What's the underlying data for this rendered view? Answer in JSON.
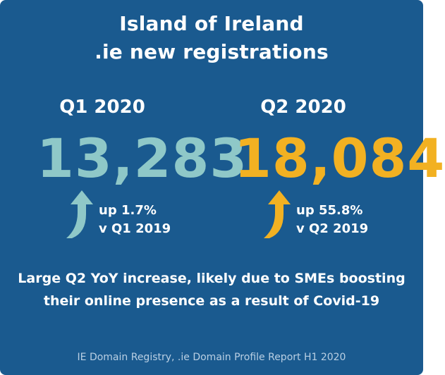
{
  "title": {
    "line1": "Island of Ireland",
    "line2": ".ie new registrations"
  },
  "periods": [
    {
      "label": "Q1 2020",
      "value": "13,283",
      "change": "up 1.7%",
      "comparison": "v Q1 2019",
      "color": "#8fc8c8",
      "arrow_icon": "curved-up-arrow-icon"
    },
    {
      "label": "Q2 2020",
      "value": "18,084",
      "change": "up 55.8%",
      "comparison": "v Q2 2019",
      "color": "#f2b122",
      "arrow_icon": "curved-up-arrow-icon"
    }
  ],
  "note": {
    "line1": "Large Q2 YoY increase, likely due to SMEs boosting",
    "line2": "their online presence as a result of Covid-19"
  },
  "source": "IE Domain Registry, .ie Domain Profile Report H1 2020",
  "colors": {
    "background": "#1a5a8f",
    "text": "#ffffff",
    "source_text": "#b9cfe3"
  }
}
